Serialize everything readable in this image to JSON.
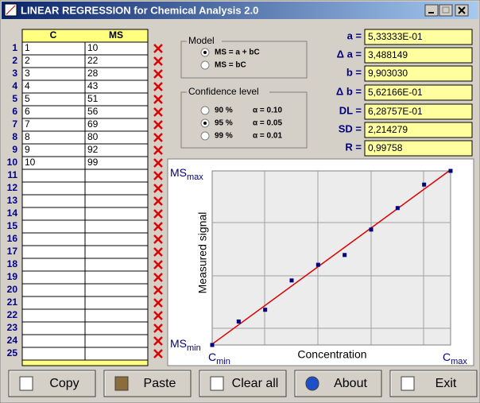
{
  "window": {
    "title": "LINEAR REGRESSION for Chemical Analysis 2.0"
  },
  "table": {
    "headers": [
      "C",
      "MS"
    ],
    "row_labels": [
      "1",
      "2",
      "3",
      "4",
      "5",
      "6",
      "7",
      "8",
      "9",
      "10",
      "11",
      "12",
      "13",
      "14",
      "15",
      "16",
      "17",
      "18",
      "19",
      "20",
      "21",
      "22",
      "23",
      "24",
      "25"
    ],
    "rows": [
      [
        "1",
        "10"
      ],
      [
        "2",
        "22"
      ],
      [
        "3",
        "28"
      ],
      [
        "4",
        "43"
      ],
      [
        "5",
        "51"
      ],
      [
        "6",
        "56"
      ],
      [
        "7",
        "69"
      ],
      [
        "8",
        "80"
      ],
      [
        "9",
        "92"
      ],
      [
        "10",
        "99"
      ]
    ]
  },
  "model": {
    "title": "Model",
    "options": [
      "MS = a + bC",
      "MS = bC"
    ],
    "selected": 0
  },
  "confidence": {
    "title": "Confidence level",
    "options": [
      {
        "level": "90 %",
        "alpha": "α = 0.10"
      },
      {
        "level": "95 %",
        "alpha": "α = 0.05"
      },
      {
        "level": "99 %",
        "alpha": "α = 0.01"
      }
    ],
    "selected": 1
  },
  "results": [
    {
      "label": "a =",
      "value": "5,33333E-01"
    },
    {
      "label": "Δ a =",
      "value": "3,488149"
    },
    {
      "label": "b =",
      "value": "9,903030"
    },
    {
      "label": "Δ b =",
      "value": "5,62166E-01"
    },
    {
      "label": "DL =",
      "value": "6,28757E-01"
    },
    {
      "label": "SD =",
      "value": "2,214279"
    },
    {
      "label": "R =",
      "value": "0,99758"
    }
  ],
  "chart_data": {
    "type": "scatter",
    "x_label": "Concentration",
    "y_label": "Measured signal",
    "y_max_label": {
      "main": "MS",
      "sub": "max"
    },
    "y_min_label": {
      "main": "MS",
      "sub": "min"
    },
    "x_min_label": {
      "main": "C",
      "sub": "min"
    },
    "x_max_label": {
      "main": "C",
      "sub": "max"
    },
    "x": [
      1,
      2,
      3,
      4,
      5,
      6,
      7,
      8,
      9,
      10
    ],
    "values": [
      10,
      22,
      28,
      43,
      51,
      56,
      69,
      80,
      92,
      99
    ],
    "xlim": [
      1,
      10
    ],
    "ylim": [
      10,
      99
    ],
    "point_color": "#000080",
    "line_color": "#e00000"
  },
  "buttons": [
    "Copy",
    "Paste",
    "Clear all",
    "About",
    "Exit"
  ]
}
